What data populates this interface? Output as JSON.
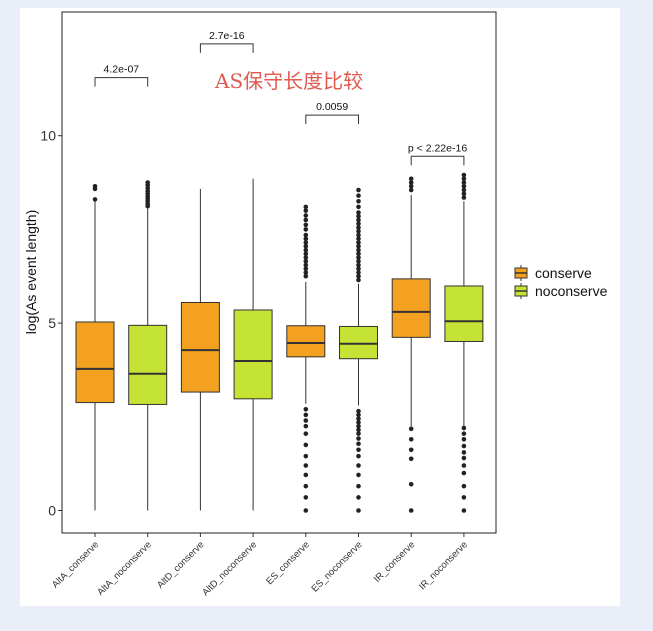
{
  "chart_data": {
    "type": "boxplot",
    "title": "AS保守长度比较",
    "xlabel": "",
    "ylabel": "log(As event length)",
    "ylim": [
      -0.6,
      13.3
    ],
    "yticks": [
      0,
      5,
      10
    ],
    "legend": {
      "position": "right",
      "entries": [
        {
          "name": "conserve",
          "color": "#f4a020"
        },
        {
          "name": "noconserve",
          "color": "#c5e334"
        }
      ]
    },
    "categories": [
      "AltA_conserve",
      "AltA_noconserve",
      "AltD_conserve",
      "AltD_noconserve",
      "ES_conserve",
      "ES_noconserve",
      "IR_conserve",
      "IR_noconserve"
    ],
    "boxes": [
      {
        "category": "AltA_conserve",
        "group": "conserve",
        "min": 0.0,
        "q1": 2.88,
        "median": 3.78,
        "q3": 5.03,
        "max": 8.25,
        "outliers": [
          8.3,
          8.58,
          8.65
        ]
      },
      {
        "category": "AltA_noconserve",
        "group": "noconserve",
        "min": 0.0,
        "q1": 2.83,
        "median": 3.65,
        "q3": 4.94,
        "max": 8.1,
        "outliers": [
          8.12,
          8.18,
          8.25,
          8.32,
          8.38,
          8.45,
          8.52,
          8.6,
          8.68,
          8.75
        ]
      },
      {
        "category": "AltD_conserve",
        "group": "conserve",
        "min": 0.0,
        "q1": 3.16,
        "median": 4.28,
        "q3": 5.55,
        "max": 8.58,
        "outliers": []
      },
      {
        "category": "AltD_noconserve",
        "group": "noconserve",
        "min": 0.0,
        "q1": 2.98,
        "median": 3.99,
        "q3": 5.35,
        "max": 8.85,
        "outliers": []
      },
      {
        "category": "ES_conserve",
        "group": "conserve",
        "min": 2.85,
        "q1": 4.1,
        "median": 4.47,
        "q3": 4.93,
        "max": 6.1,
        "outliers": [
          0.0,
          0.35,
          0.65,
          0.95,
          1.2,
          1.45,
          1.75,
          2.05,
          2.25,
          2.4,
          2.55,
          2.7,
          6.25,
          6.35,
          6.45,
          6.55,
          6.65,
          6.75,
          6.85,
          6.95,
          7.05,
          7.15,
          7.25,
          7.35,
          7.5,
          7.62,
          7.75,
          7.87,
          8.0,
          8.1
        ]
      },
      {
        "category": "ES_noconserve",
        "group": "noconserve",
        "min": 2.8,
        "q1": 4.05,
        "median": 4.45,
        "q3": 4.91,
        "max": 6.05,
        "outliers": [
          0.0,
          0.35,
          0.65,
          0.95,
          1.2,
          1.45,
          1.62,
          1.78,
          1.92,
          2.05,
          2.15,
          2.25,
          2.35,
          2.45,
          2.55,
          2.65,
          6.15,
          6.25,
          6.35,
          6.45,
          6.55,
          6.65,
          6.75,
          6.85,
          6.95,
          7.05,
          7.15,
          7.25,
          7.35,
          7.45,
          7.55,
          7.65,
          7.75,
          7.85,
          7.95,
          8.1,
          8.25,
          8.4,
          8.55
        ]
      },
      {
        "category": "IR_conserve",
        "group": "conserve",
        "min": 2.25,
        "q1": 4.62,
        "median": 5.3,
        "q3": 6.18,
        "max": 8.42,
        "outliers": [
          0.0,
          0.7,
          1.38,
          1.62,
          1.9,
          2.18,
          8.55,
          8.65,
          8.75,
          8.85
        ]
      },
      {
        "category": "IR_noconserve",
        "group": "noconserve",
        "min": 2.25,
        "q1": 4.51,
        "median": 5.05,
        "q3": 5.99,
        "max": 8.25,
        "outliers": [
          0.0,
          0.35,
          0.65,
          1.0,
          1.2,
          1.4,
          1.55,
          1.72,
          1.9,
          2.05,
          2.2,
          8.35,
          8.45,
          8.55,
          8.65,
          8.75,
          8.85,
          8.95
        ]
      }
    ],
    "comparisons": [
      {
        "pair": [
          "AltA_conserve",
          "AltA_noconserve"
        ],
        "label": "4.2e-07",
        "y": 11.55
      },
      {
        "pair": [
          "AltD_conserve",
          "AltD_noconserve"
        ],
        "label": "2.7e-16",
        "y": 12.45
      },
      {
        "pair": [
          "ES_conserve",
          "ES_noconserve"
        ],
        "label": "0.0059",
        "y": 10.55
      },
      {
        "pair": [
          "IR_conserve",
          "IR_noconserve"
        ],
        "label": "p < 2.22e-16",
        "y": 9.45
      }
    ]
  }
}
